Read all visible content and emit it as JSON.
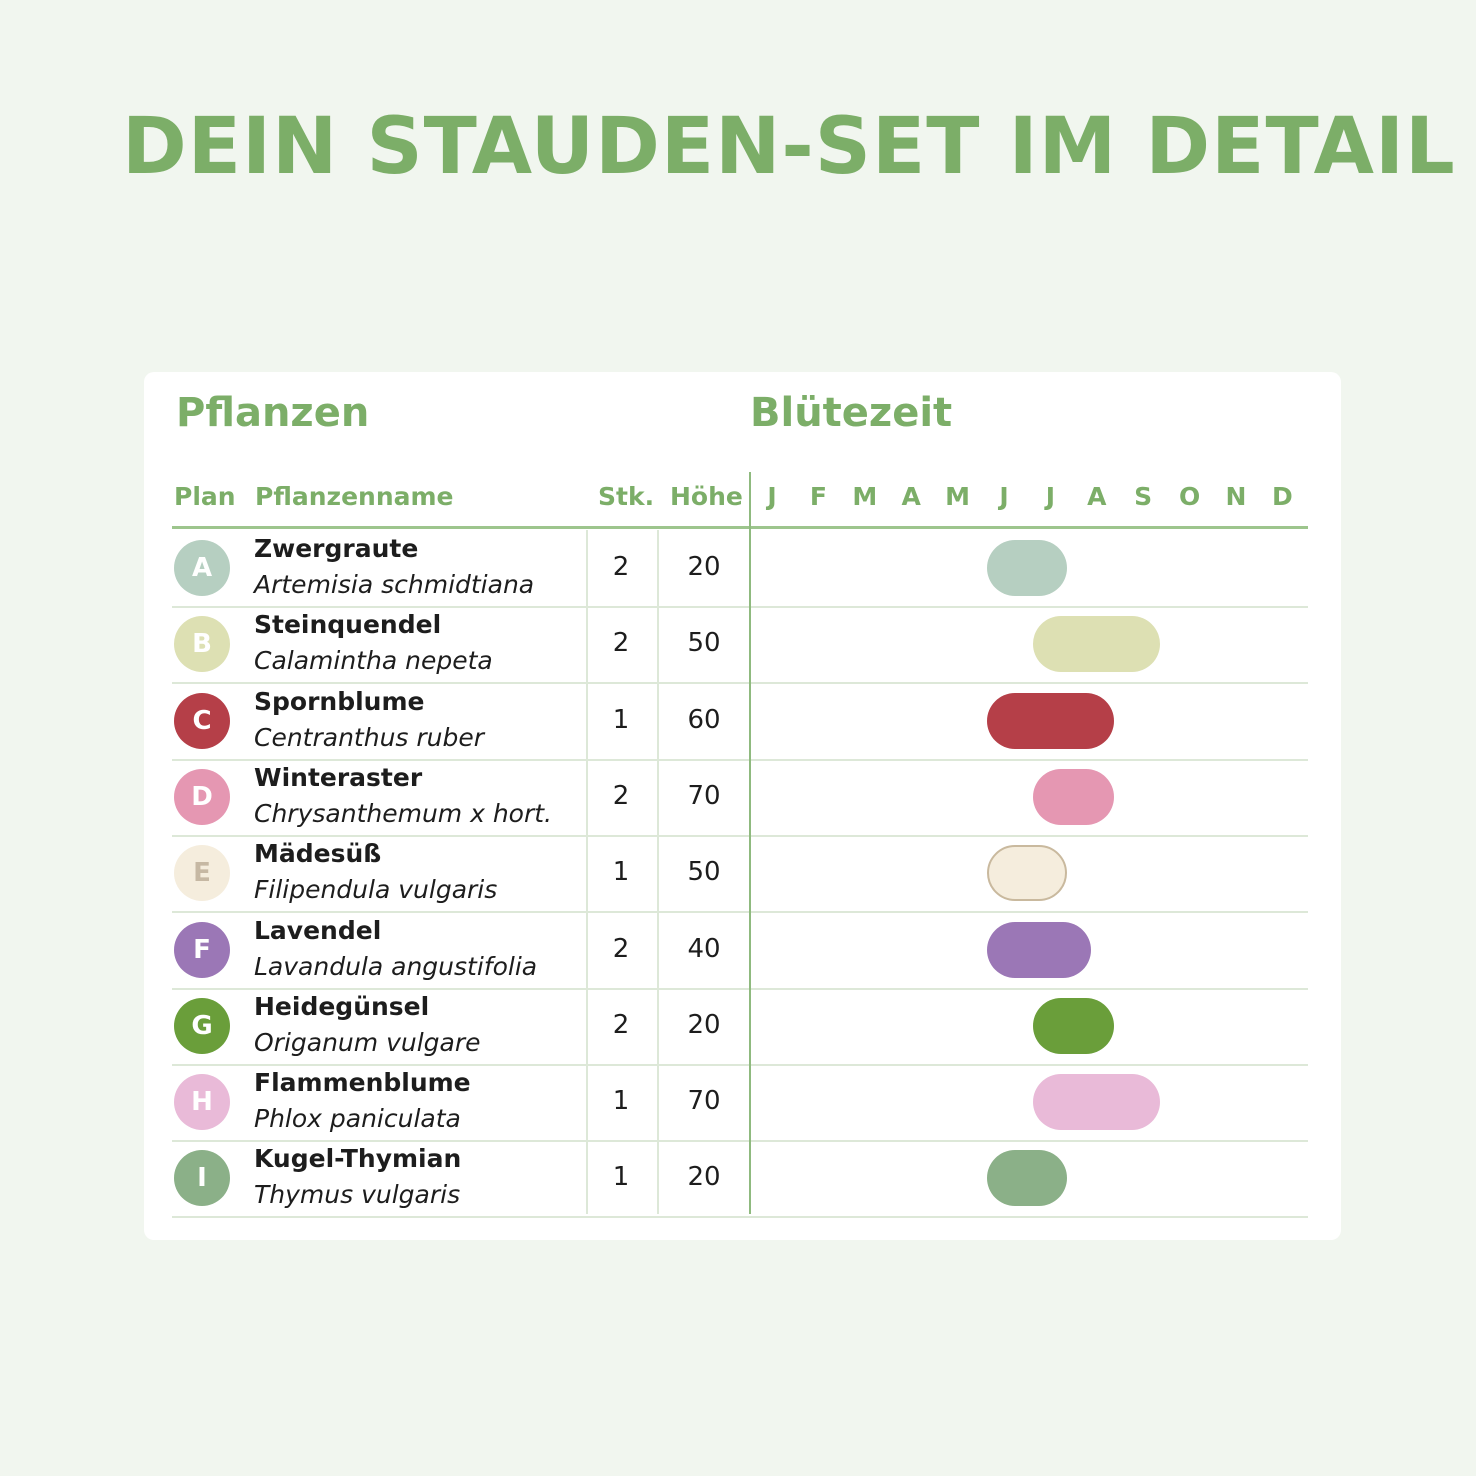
{
  "page_title": "DEIN STAUDEN-SET IM DETAIL",
  "sections": {
    "plants": "Pflanzen",
    "bloom": "Blütezeit"
  },
  "columns": {
    "plan": "Plan",
    "name": "Pflanzenname",
    "qty": "Stk.",
    "height": "Höhe"
  },
  "chart_data": {
    "type": "table",
    "months": [
      "J",
      "F",
      "M",
      "A",
      "M",
      "J",
      "J",
      "A",
      "S",
      "O",
      "N",
      "D"
    ],
    "rows": [
      {
        "plan": "A",
        "name": "Zwergraute",
        "latin": "Artemisia schmidtiana",
        "qty": "2",
        "height": "20",
        "bloom_start": 6,
        "bloom_end": 7,
        "color": "#b6cfc1"
      },
      {
        "plan": "B",
        "name": "Steinquendel",
        "latin": "Calamintha nepeta",
        "qty": "2",
        "height": "50",
        "bloom_start": 7,
        "bloom_end": 9,
        "color": "#dde0b3"
      },
      {
        "plan": "C",
        "name": "Spornblume",
        "latin": "Centranthus ruber",
        "qty": "1",
        "height": "60",
        "bloom_start": 6,
        "bloom_end": 8,
        "color": "#b53f48"
      },
      {
        "plan": "D",
        "name": "Winteraster",
        "latin": "Chrysanthemum x hort.",
        "qty": "2",
        "height": "70",
        "bloom_start": 7,
        "bloom_end": 8,
        "color": "#e597b2"
      },
      {
        "plan": "E",
        "name": "Mädesüß",
        "latin": "Filipendula vulgaris",
        "qty": "1",
        "height": "50",
        "bloom_start": 6,
        "bloom_end": 7,
        "color": "#f5eddd",
        "text_color": "#c6b8a3",
        "border": "#c9b99e"
      },
      {
        "plan": "F",
        "name": "Lavendel",
        "latin": "Lavandula angustifolia",
        "qty": "2",
        "height": "40",
        "bloom_start": 6,
        "bloom_end": 7.5,
        "color": "#9b77b6"
      },
      {
        "plan": "G",
        "name": "Heidegünsel",
        "latin": "Origanum vulgare",
        "qty": "2",
        "height": "20",
        "bloom_start": 7,
        "bloom_end": 8,
        "color": "#6a9e3a"
      },
      {
        "plan": "H",
        "name": "Flammenblume",
        "latin": "Phlox paniculata",
        "qty": "1",
        "height": "70",
        "bloom_start": 7,
        "bloom_end": 9,
        "color": "#e9bad8"
      },
      {
        "plan": "I",
        "name": "Kugel-Thymian",
        "latin": "Thymus vulgaris",
        "qty": "1",
        "height": "20",
        "bloom_start": 6,
        "bloom_end": 7,
        "color": "#8bb088"
      }
    ]
  }
}
